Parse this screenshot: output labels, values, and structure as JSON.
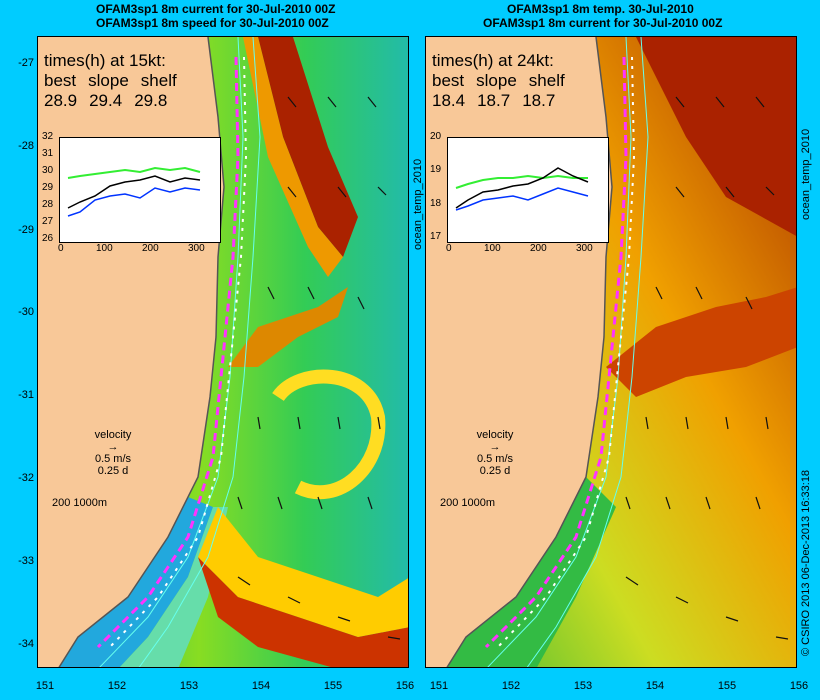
{
  "colors": {
    "background": "#00ccff",
    "land": "#f8c898",
    "track": "#ff33ff",
    "contour": "#66ffee"
  },
  "left_panel": {
    "title_line1": "OFAM3sp1 8m current for 30-Jul-2010 00Z",
    "title_line2": "OFAM3sp1 8m speed for 30-Jul-2010 00Z",
    "times_heading": "times(h) at 15kt:",
    "col_labels": [
      "best",
      "slope",
      "shelf"
    ],
    "col_values": [
      "28.9",
      "29.4",
      "29.8"
    ],
    "inset_y_ticks": [
      "32",
      "31",
      "30",
      "29",
      "28",
      "27",
      "26"
    ],
    "inset_x_ticks": [
      "0",
      "100",
      "200",
      "300"
    ],
    "velocity_label": "velocity",
    "velocity_speed": "0.5 m/s",
    "velocity_time": "0.25 d",
    "depth_scale": "200  1000m",
    "side_label": "ocean_temp_2010"
  },
  "right_panel": {
    "title_line1": "OFAM3sp1 8m temp. 30-Jul-2010",
    "title_line2": "OFAM3sp1 8m current for 30-Jul-2010 00Z",
    "times_heading": "times(h) at 24kt:",
    "col_labels": [
      "best",
      "slope",
      "shelf"
    ],
    "col_values": [
      "18.4",
      "18.7",
      "18.7"
    ],
    "inset_y_ticks": [
      "20",
      "19",
      "18",
      "17"
    ],
    "inset_x_ticks": [
      "0",
      "100",
      "200",
      "300"
    ],
    "velocity_label": "velocity",
    "velocity_speed": "0.5 m/s",
    "velocity_time": "0.25 d",
    "depth_scale": "200  1000m",
    "side_label": "ocean_temp_2010"
  },
  "lat_ticks": [
    "-27",
    "-28",
    "-29",
    "-30",
    "-31",
    "-32",
    "-33",
    "-34"
  ],
  "lon_ticks": [
    "151",
    "152",
    "153",
    "154",
    "155",
    "156"
  ],
  "credit": "© CSIRO 2013   06-Dec-2013 16:33:18"
}
